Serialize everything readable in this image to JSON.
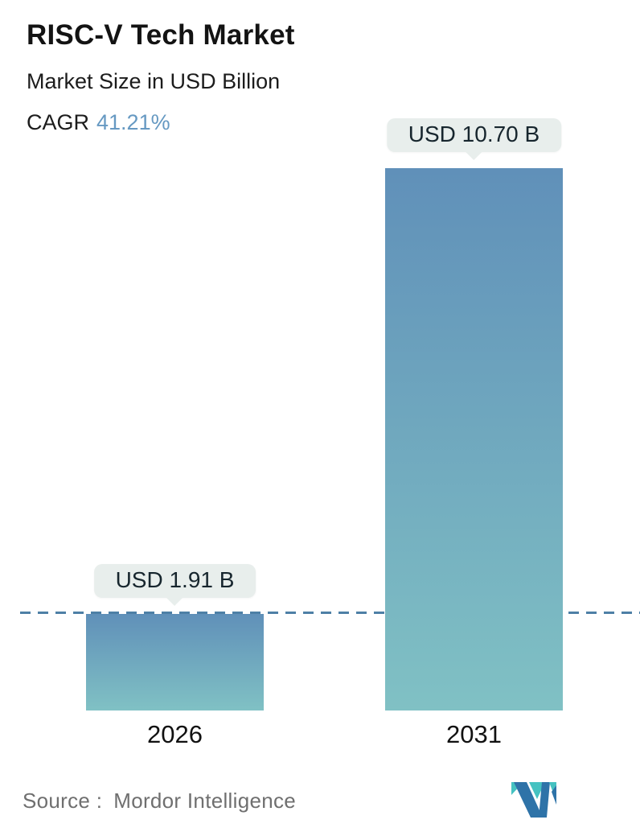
{
  "header": {
    "title": "RISC-V Tech Market",
    "subtitle": "Market Size in USD Billion",
    "cagr_label": "CAGR",
    "cagr_value": "41.21%"
  },
  "chart_data": {
    "type": "bar",
    "title": "RISC-V Tech Market",
    "subtitle": "Market Size in USD Billion",
    "unit": "USD Billion",
    "cagr_percent": 41.21,
    "categories": [
      "2026",
      "2031"
    ],
    "values": [
      1.91,
      10.7
    ],
    "value_labels": [
      "USD 1.91 B",
      "USD 10.70 B"
    ],
    "baseline_value": 1.91,
    "baseline_style": "dashed",
    "legend": "none",
    "grid": "off",
    "colors": {
      "bar_gradient_top": "#6090b9",
      "bar_gradient_bottom": "#80c1c4",
      "baseline": "#4e80a6",
      "value_pill_bg": "#e8eeec",
      "cagr_accent": "#6699c2",
      "logo_blue": "#2e73a8",
      "logo_teal": "#45c2c1"
    }
  },
  "footer": {
    "source_label": "Source :",
    "source_value": "Mordor Intelligence",
    "logo": "mordor-intelligence-logo"
  }
}
